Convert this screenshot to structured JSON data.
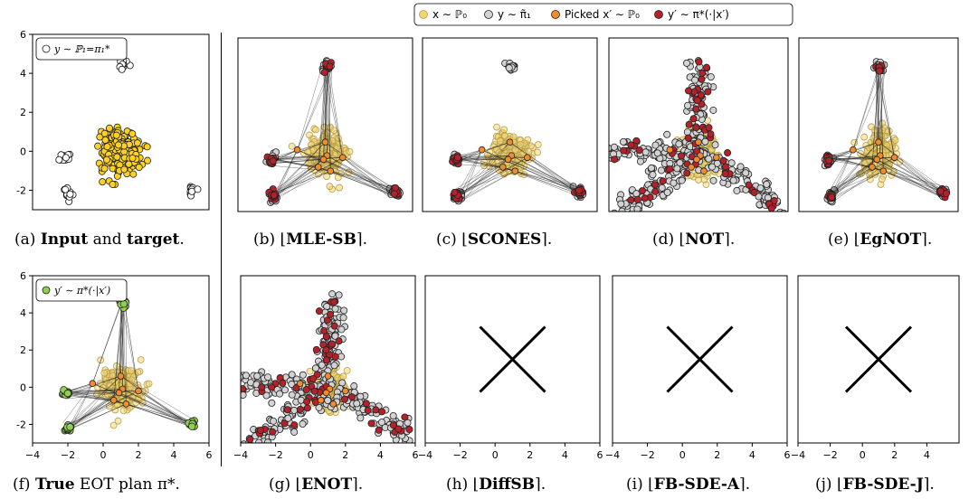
{
  "legend_top": {
    "items": [
      {
        "label": "x ∼ ℙ₀",
        "color": "#f2d675",
        "edge": "#b8a04a"
      },
      {
        "label": "y ∼ π̃₁",
        "color": "#d3d3d3",
        "edge": "#222222"
      },
      {
        "label": "Picked x′ ∼ ℙ₀",
        "color": "#f28c28",
        "edge": "#222222"
      },
      {
        "label": "y′ ∼ π*(·|x′)",
        "color": "#b3222a",
        "edge": "#222222"
      }
    ]
  },
  "colors": {
    "input": "#ffd21f",
    "target": "#ffffff",
    "sample": "#f2d675",
    "generated": "#d3d3d3",
    "picked": "#f28c28",
    "conditional": "#b3222a",
    "true_conditional": "#8fd14f",
    "line": "#222222"
  },
  "chart_data": [
    {
      "id": "a",
      "type": "scatter",
      "caption_prefix": "(a) ",
      "caption_bold1": "Input",
      "caption_mid": " and ",
      "caption_bold2": "target",
      "caption_suffix": ".",
      "legend": "y ∼ ℙ₁=π₁*",
      "xlim": [
        -4,
        6
      ],
      "ylim": [
        -3,
        6
      ],
      "yticks": [
        -2,
        0,
        2,
        4,
        6
      ],
      "xticks": [],
      "clusters": [
        {
          "x": 1.1,
          "y": 4.5
        },
        {
          "x": -2.1,
          "y": -0.3
        },
        {
          "x": -2.0,
          "y": -2.2
        },
        {
          "x": 5.0,
          "y": -2.0
        }
      ],
      "source_center": {
        "x": 1.0,
        "y": 0.0
      }
    },
    {
      "id": "b",
      "type": "scatter",
      "caption_prefix": "(b) ⌊",
      "caption_bold": "MLE-SB",
      "caption_suffix": "⌉.",
      "mode": "plan",
      "spread": 0.25
    },
    {
      "id": "c",
      "type": "scatter",
      "caption_prefix": "(c) ⌊",
      "caption_bold": "SCONES",
      "caption_suffix": "⌉.",
      "mode": "plan_partial",
      "spread": 0.22
    },
    {
      "id": "d",
      "type": "scatter",
      "caption_prefix": "(d) ⌊",
      "caption_bold": "NOT",
      "caption_suffix": "⌉.",
      "mode": "spread",
      "spread": 1.0
    },
    {
      "id": "e",
      "type": "scatter",
      "caption_prefix": "(e) ⌊",
      "caption_bold": "EgNOT",
      "caption_suffix": "⌉.",
      "mode": "plan",
      "spread": 0.22
    },
    {
      "id": "f",
      "type": "scatter",
      "caption_prefix": "(f) ",
      "caption_bold": "True",
      "caption_suffix": " EOT plan π*.",
      "legend": "y′ ∼ π*(·|x′)",
      "mode": "true",
      "xlim": [
        -4,
        6
      ],
      "ylim": [
        -3,
        6
      ],
      "xticks": [
        -4,
        -2,
        0,
        2,
        4,
        6
      ],
      "yticks": [
        -2,
        0,
        2,
        4,
        6
      ]
    },
    {
      "id": "g",
      "type": "scatter",
      "caption_prefix": "(g) ⌊",
      "caption_bold": "ENOT",
      "caption_suffix": "⌉.",
      "mode": "spread",
      "spread": 1.2,
      "xticks": [
        -4,
        -2,
        0,
        2,
        4,
        6
      ]
    },
    {
      "id": "h",
      "type": "empty",
      "caption_prefix": "(h) ⌊",
      "caption_bold": "DiffSB",
      "caption_suffix": "⌉.",
      "xticks": [
        -4,
        -2,
        0,
        2,
        4,
        6
      ]
    },
    {
      "id": "i",
      "type": "empty",
      "caption_prefix": "(i) ⌊",
      "caption_bold": "FB-SDE-A",
      "caption_suffix": "⌉.",
      "xticks": [
        -4,
        -2,
        0,
        2,
        4,
        6
      ]
    },
    {
      "id": "j",
      "type": "empty",
      "caption_prefix": "(j) ⌊",
      "caption_bold": "FB-SDE-J",
      "caption_suffix": "⌉.",
      "xticks": [
        -4,
        -2,
        0,
        2,
        4
      ]
    }
  ]
}
